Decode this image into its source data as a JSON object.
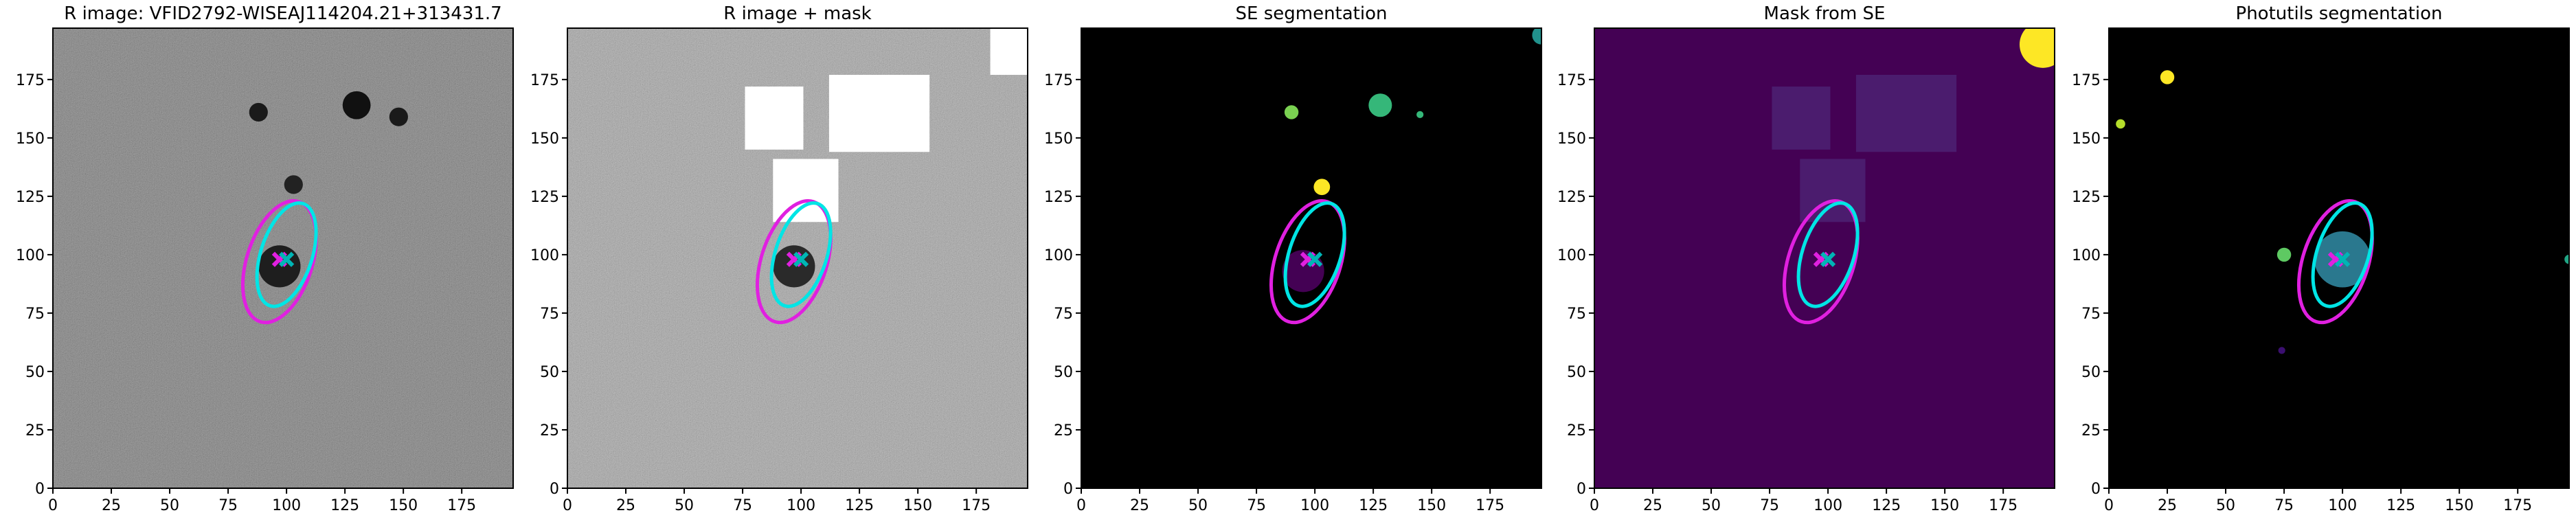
{
  "chart_data": [
    {
      "type": "image",
      "title": "R image: VFID2792-WISEAJ114204.21+313431.7",
      "xlim": [
        0,
        197
      ],
      "ylim": [
        0,
        197
      ],
      "xticks": [
        0,
        25,
        50,
        75,
        100,
        125,
        150,
        175
      ],
      "yticks": [
        0,
        25,
        50,
        75,
        100,
        125,
        150,
        175
      ],
      "background_color": "#5a5a5a",
      "noise": true,
      "rects": [],
      "blobs": [
        {
          "x": 130,
          "y": 164,
          "r": 6,
          "color": "#111111"
        },
        {
          "x": 88,
          "y": 161,
          "r": 4,
          "color": "#1a1a1a"
        },
        {
          "x": 148,
          "y": 159,
          "r": 4,
          "color": "#1a1a1a"
        },
        {
          "x": 103,
          "y": 130,
          "r": 4,
          "color": "#222222"
        },
        {
          "x": 97,
          "y": 95,
          "r": 9,
          "color": "#1e1e1e"
        }
      ],
      "ellipses": [
        {
          "cx": 97,
          "cy": 97,
          "a": 27,
          "b": 14,
          "angle": 72,
          "color": "#e020e0"
        },
        {
          "cx": 100,
          "cy": 100,
          "a": 23,
          "b": 11,
          "angle": 72,
          "color": "#00e5e5"
        }
      ],
      "centers": [
        {
          "x": 97,
          "y": 98,
          "color": "#e020e0"
        },
        {
          "x": 100,
          "y": 98,
          "color": "#00b5b5"
        }
      ]
    },
    {
      "type": "image",
      "title": "R image + mask",
      "xlim": [
        0,
        197
      ],
      "ylim": [
        0,
        197
      ],
      "xticks": [
        0,
        25,
        50,
        75,
        100,
        125,
        150,
        175
      ],
      "yticks": [
        0,
        25,
        50,
        75,
        100,
        125,
        150,
        175
      ],
      "background_color": "#9a9a9a",
      "noise": true,
      "rects": [
        {
          "x0": 76,
          "x1": 101,
          "y0": 145,
          "y1": 172,
          "color": "#ffffff"
        },
        {
          "x0": 112,
          "x1": 155,
          "y0": 144,
          "y1": 177,
          "color": "#ffffff"
        },
        {
          "x0": 88,
          "x1": 116,
          "y0": 114,
          "y1": 141,
          "color": "#ffffff"
        },
        {
          "x0": 181,
          "x1": 197,
          "y0": 177,
          "y1": 197,
          "color": "#ffffff"
        }
      ],
      "blobs": [
        {
          "x": 97,
          "y": 95,
          "r": 9,
          "color": "#2a2a2a"
        }
      ],
      "ellipses": [
        {
          "cx": 97,
          "cy": 97,
          "a": 27,
          "b": 14,
          "angle": 72,
          "color": "#e020e0"
        },
        {
          "cx": 100,
          "cy": 100,
          "a": 23,
          "b": 11,
          "angle": 72,
          "color": "#00e5e5"
        }
      ],
      "centers": [
        {
          "x": 97,
          "y": 98,
          "color": "#e020e0"
        },
        {
          "x": 100,
          "y": 98,
          "color": "#00b5b5"
        }
      ]
    },
    {
      "type": "image",
      "title": "SE segmentation",
      "xlim": [
        0,
        197
      ],
      "ylim": [
        0,
        197
      ],
      "xticks": [
        0,
        25,
        50,
        75,
        100,
        125,
        150,
        175
      ],
      "yticks": [
        0,
        25,
        50,
        75,
        100,
        125,
        150,
        175
      ],
      "background_color": "#000000",
      "noise": false,
      "rects": [],
      "blobs": [
        {
          "x": 128,
          "y": 164,
          "r": 5,
          "color": "#35b779"
        },
        {
          "x": 145,
          "y": 160,
          "r": 1.5,
          "color": "#35b779"
        },
        {
          "x": 90,
          "y": 161,
          "r": 3,
          "color": "#7ad151"
        },
        {
          "x": 103,
          "y": 129,
          "r": 3.5,
          "color": "#fde725"
        },
        {
          "x": 95,
          "y": 93,
          "r": 9,
          "color": "#440154"
        },
        {
          "x": 197,
          "y": 194,
          "r": 4,
          "color": "#21918c"
        }
      ],
      "ellipses": [
        {
          "cx": 97,
          "cy": 97,
          "a": 27,
          "b": 14,
          "angle": 72,
          "color": "#e020e0"
        },
        {
          "cx": 100,
          "cy": 100,
          "a": 23,
          "b": 11,
          "angle": 72,
          "color": "#00e5e5"
        }
      ],
      "centers": [
        {
          "x": 97,
          "y": 98,
          "color": "#e020e0"
        },
        {
          "x": 100,
          "y": 98,
          "color": "#00b5b5"
        }
      ]
    },
    {
      "type": "image",
      "title": "Mask from SE",
      "xlim": [
        0,
        197
      ],
      "ylim": [
        0,
        197
      ],
      "xticks": [
        0,
        25,
        50,
        75,
        100,
        125,
        150,
        175
      ],
      "yticks": [
        0,
        25,
        50,
        75,
        100,
        125,
        150,
        175
      ],
      "background_color": "#440154",
      "noise": false,
      "rects": [
        {
          "x0": 76,
          "x1": 101,
          "y0": 145,
          "y1": 172,
          "color": "#4b1c6e"
        },
        {
          "x0": 112,
          "x1": 155,
          "y0": 144,
          "y1": 177,
          "color": "#4b1c6e"
        },
        {
          "x0": 88,
          "x1": 116,
          "y0": 114,
          "y1": 141,
          "color": "#4b1c6e"
        }
      ],
      "blobs": [
        {
          "x": 192,
          "y": 190,
          "r": 10,
          "color": "#fde725"
        }
      ],
      "ellipses": [
        {
          "cx": 97,
          "cy": 97,
          "a": 27,
          "b": 14,
          "angle": 72,
          "color": "#e020e0"
        },
        {
          "cx": 100,
          "cy": 100,
          "a": 23,
          "b": 11,
          "angle": 72,
          "color": "#00e5e5"
        }
      ],
      "centers": [
        {
          "x": 97,
          "y": 98,
          "color": "#e020e0"
        },
        {
          "x": 100,
          "y": 98,
          "color": "#00b5b5"
        }
      ]
    },
    {
      "type": "image",
      "title": "Photutils segmentation",
      "xlim": [
        0,
        197
      ],
      "ylim": [
        0,
        197
      ],
      "xticks": [
        0,
        25,
        50,
        75,
        100,
        125,
        150,
        175
      ],
      "yticks": [
        0,
        25,
        50,
        75,
        100,
        125,
        150,
        175
      ],
      "background_color": "#000000",
      "noise": false,
      "rects": [],
      "blobs": [
        {
          "x": 25,
          "y": 176,
          "r": 3,
          "color": "#fde725"
        },
        {
          "x": 5,
          "y": 156,
          "r": 2,
          "color": "#b5de2b"
        },
        {
          "x": 100,
          "y": 98,
          "r": 12,
          "color": "#2a788e"
        },
        {
          "x": 75,
          "y": 100,
          "r": 3,
          "color": "#5ec962"
        },
        {
          "x": 74,
          "y": 59,
          "r": 1.5,
          "color": "#3b0f70"
        },
        {
          "x": 197,
          "y": 98,
          "r": 2,
          "color": "#21a585"
        }
      ],
      "ellipses": [
        {
          "cx": 97,
          "cy": 97,
          "a": 27,
          "b": 14,
          "angle": 72,
          "color": "#e020e0"
        },
        {
          "cx": 100,
          "cy": 100,
          "a": 23,
          "b": 11,
          "angle": 72,
          "color": "#00e5e5"
        }
      ],
      "centers": [
        {
          "x": 97,
          "y": 98,
          "color": "#e020e0"
        },
        {
          "x": 100,
          "y": 98,
          "color": "#00b5b5"
        }
      ]
    }
  ]
}
